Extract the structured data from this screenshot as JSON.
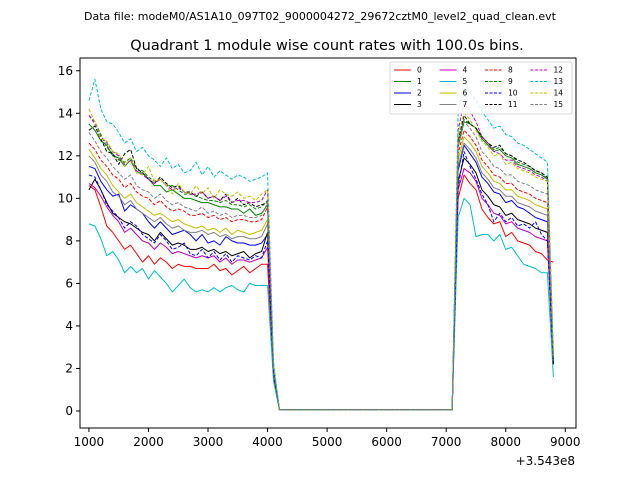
{
  "suptitle": "Data file: modeM0/AS1A10_097T02_9000004272_29672cztM0_level2_quad_clean.evt",
  "chart_data": {
    "type": "line",
    "title": "Quadrant 1 module wise count rates with 100.0s bins.",
    "xlabel": "",
    "ylabel": "",
    "xlim": [
      850,
      9180
    ],
    "ylim": [
      -0.8,
      16.6
    ],
    "x_offset_label": "+3.543e8",
    "x_ticks": [
      1000,
      2000,
      3000,
      4000,
      5000,
      6000,
      7000,
      8000,
      9000
    ],
    "x_tick_labels": [
      "1000",
      "2000",
      "3000",
      "4000",
      "5000",
      "6000",
      "7000",
      "8000",
      "9000"
    ],
    "y_ticks": [
      0,
      2,
      4,
      6,
      8,
      10,
      12,
      14,
      16
    ],
    "y_tick_labels": [
      "0",
      "2",
      "4",
      "6",
      "8",
      "10",
      "12",
      "14",
      "16"
    ],
    "segments": [
      {
        "start": 1000,
        "end": 4100
      },
      {
        "start": 7100,
        "end": 8800
      }
    ],
    "gap": {
      "start": 4200,
      "end": 7100,
      "value": 0.05
    },
    "x": [
      1000,
      1100,
      1200,
      1300,
      1400,
      1500,
      1600,
      1700,
      1800,
      1900,
      2000,
      2100,
      2200,
      2300,
      2400,
      2500,
      2600,
      2700,
      2800,
      2900,
      3000,
      3100,
      3200,
      3300,
      3400,
      3500,
      3600,
      3700,
      3800,
      3900,
      4000,
      4100,
      4200,
      7100,
      7200,
      7300,
      7400,
      7500,
      7600,
      7700,
      7800,
      7900,
      8000,
      8100,
      8200,
      8300,
      8400,
      8500,
      8600,
      8700,
      8800
    ],
    "series": [
      {
        "name": "0",
        "color": "#ff0000",
        "style": "solid",
        "values": [
          10.6,
          10.4,
          9.6,
          8.7,
          8.4,
          8.0,
          7.6,
          7.8,
          7.4,
          7.0,
          7.3,
          6.9,
          7.2,
          7.0,
          6.7,
          6.9,
          6.8,
          6.8,
          6.7,
          6.7,
          6.7,
          6.9,
          6.6,
          6.7,
          6.4,
          6.6,
          6.8,
          6.5,
          6.7,
          6.9,
          6.9,
          1.6,
          0.05,
          0.05,
          10.0,
          11.1,
          10.7,
          10.4,
          9.5,
          9.1,
          8.8,
          8.9,
          8.2,
          8.4,
          8.0,
          7.9,
          7.8,
          7.5,
          7.4,
          7.1,
          7.0
        ]
      },
      {
        "name": "1",
        "color": "#008000",
        "style": "solid",
        "values": [
          13.5,
          13.2,
          12.7,
          12.5,
          12.0,
          11.9,
          11.5,
          11.8,
          11.2,
          11.2,
          10.9,
          10.6,
          10.6,
          10.3,
          10.4,
          10.2,
          10.0,
          10.0,
          9.9,
          9.8,
          9.8,
          9.7,
          9.6,
          9.6,
          9.5,
          9.5,
          9.3,
          9.5,
          9.2,
          9.3,
          9.7,
          2.0,
          0.05,
          0.05,
          12.4,
          13.6,
          13.5,
          13.3,
          12.8,
          12.5,
          12.2,
          12.3,
          12.0,
          11.9,
          11.6,
          11.5,
          11.4,
          11.2,
          11.1,
          10.9,
          2.2
        ]
      },
      {
        "name": "2",
        "color": "#0000ff",
        "style": "solid",
        "values": [
          11.5,
          11.4,
          10.8,
          10.4,
          10.1,
          10.2,
          9.4,
          9.7,
          9.5,
          9.3,
          8.9,
          8.6,
          8.9,
          8.6,
          8.3,
          8.4,
          8.5,
          8.3,
          8.0,
          8.3,
          7.9,
          8.0,
          7.8,
          8.2,
          8.0,
          7.9,
          7.9,
          7.8,
          7.8,
          7.9,
          8.3,
          1.9,
          0.05,
          0.05,
          11.3,
          12.5,
          12.1,
          11.7,
          11.0,
          10.7,
          10.3,
          10.2,
          9.8,
          9.9,
          9.6,
          9.5,
          9.3,
          9.1,
          9.0,
          8.9,
          2.4
        ]
      },
      {
        "name": "3",
        "color": "#000000",
        "style": "solid",
        "values": [
          10.4,
          10.9,
          10.4,
          9.8,
          9.3,
          9.1,
          8.9,
          8.8,
          8.6,
          8.4,
          8.3,
          8.0,
          8.4,
          8.1,
          7.8,
          7.9,
          7.8,
          7.6,
          7.6,
          7.7,
          7.5,
          7.6,
          7.4,
          7.5,
          7.3,
          7.4,
          7.5,
          7.2,
          7.4,
          7.5,
          8.4,
          1.9,
          0.05,
          0.05,
          10.8,
          11.9,
          11.6,
          11.2,
          10.4,
          10.1,
          9.7,
          9.6,
          9.2,
          9.3,
          9.0,
          8.9,
          8.8,
          8.6,
          8.5,
          8.4,
          2.4
        ]
      },
      {
        "name": "4",
        "color": "#bf00bf",
        "style": "solid",
        "values": [
          10.7,
          10.5,
          10.1,
          9.6,
          9.2,
          8.9,
          8.4,
          8.6,
          8.3,
          8.0,
          7.9,
          7.6,
          7.9,
          7.7,
          7.4,
          7.5,
          7.4,
          7.3,
          7.2,
          7.3,
          7.2,
          7.3,
          7.0,
          7.2,
          6.9,
          7.1,
          7.1,
          7.0,
          7.1,
          7.2,
          7.7,
          1.8,
          0.05,
          0.05,
          10.4,
          11.4,
          11.2,
          10.8,
          10.0,
          9.7,
          9.3,
          9.2,
          8.8,
          8.9,
          8.6,
          8.5,
          8.4,
          8.2,
          8.1,
          8.0,
          2.3
        ]
      },
      {
        "name": "5",
        "color": "#00bfbf",
        "style": "solid",
        "values": [
          8.8,
          8.7,
          8.1,
          7.3,
          7.5,
          7.1,
          6.5,
          6.8,
          6.5,
          6.7,
          6.2,
          6.6,
          6.3,
          6.0,
          5.6,
          5.9,
          6.2,
          5.8,
          5.6,
          5.7,
          5.6,
          5.8,
          5.6,
          5.8,
          5.9,
          5.7,
          5.6,
          6.0,
          5.9,
          5.9,
          5.9,
          1.4,
          0.05,
          0.05,
          9.1,
          10.0,
          9.7,
          8.2,
          8.3,
          8.3,
          8.0,
          8.3,
          7.6,
          7.7,
          7.3,
          6.9,
          6.8,
          6.7,
          6.5,
          6.5,
          1.6
        ]
      },
      {
        "name": "6",
        "color": "#bfbf00",
        "style": "solid",
        "values": [
          12.3,
          11.9,
          11.4,
          11.1,
          10.6,
          10.3,
          10.0,
          10.2,
          9.8,
          9.6,
          9.4,
          9.2,
          9.3,
          9.1,
          8.9,
          9.0,
          8.8,
          8.7,
          8.6,
          8.7,
          8.5,
          8.6,
          8.4,
          8.6,
          8.3,
          8.5,
          8.4,
          8.3,
          8.4,
          8.5,
          9.0,
          1.9,
          0.05,
          0.05,
          11.8,
          12.9,
          12.6,
          12.2,
          11.5,
          11.2,
          10.8,
          10.7,
          10.4,
          10.4,
          10.1,
          10.0,
          9.9,
          9.7,
          9.6,
          9.5,
          2.5
        ]
      },
      {
        "name": "7",
        "color": "#808080",
        "style": "solid",
        "values": [
          12.0,
          11.7,
          11.1,
          10.8,
          10.3,
          10.1,
          9.7,
          9.9,
          9.5,
          9.3,
          9.1,
          8.9,
          9.1,
          8.8,
          8.6,
          8.7,
          8.5,
          8.4,
          8.4,
          8.5,
          8.3,
          8.4,
          8.2,
          8.3,
          8.1,
          8.2,
          8.2,
          8.1,
          8.1,
          8.2,
          8.8,
          1.9,
          0.05,
          0.05,
          11.5,
          12.6,
          12.3,
          11.9,
          11.2,
          10.9,
          10.5,
          10.4,
          10.1,
          10.1,
          9.8,
          9.7,
          9.6,
          9.4,
          9.3,
          9.2,
          2.4
        ]
      },
      {
        "name": "8",
        "color": "#ff0000",
        "style": "dashed",
        "values": [
          12.6,
          12.3,
          11.8,
          11.5,
          11.1,
          10.9,
          10.5,
          10.7,
          10.3,
          10.1,
          10.0,
          9.7,
          9.9,
          9.6,
          9.4,
          9.5,
          9.4,
          9.2,
          9.2,
          9.3,
          9.1,
          9.2,
          9.0,
          9.1,
          8.9,
          9.0,
          9.0,
          8.9,
          8.9,
          9.0,
          9.6,
          2.0,
          0.05,
          0.05,
          12.1,
          13.2,
          12.9,
          12.5,
          11.8,
          11.5,
          11.1,
          11.0,
          10.7,
          10.7,
          10.4,
          10.3,
          10.2,
          10.0,
          9.9,
          9.8,
          2.5
        ]
      },
      {
        "name": "9",
        "color": "#008000",
        "style": "dashed",
        "values": [
          13.9,
          13.6,
          13.0,
          12.4,
          12.1,
          11.8,
          11.7,
          11.9,
          11.4,
          11.3,
          11.0,
          10.8,
          10.9,
          10.6,
          10.6,
          10.4,
          10.2,
          10.2,
          10.1,
          10.0,
          9.9,
          9.9,
          9.8,
          9.9,
          9.7,
          9.7,
          9.6,
          9.7,
          9.5,
          9.6,
          9.9,
          2.0,
          0.05,
          0.05,
          12.6,
          13.7,
          13.5,
          13.3,
          12.9,
          12.6,
          12.3,
          12.4,
          12.1,
          12.0,
          11.7,
          11.6,
          11.5,
          11.3,
          11.2,
          10.9,
          2.3
        ]
      },
      {
        "name": "10",
        "color": "#0000ff",
        "style": "dashed",
        "values": [
          11.1,
          11.0,
          10.4,
          9.7,
          9.4,
          9.1,
          8.6,
          8.9,
          8.7,
          8.3,
          8.1,
          7.9,
          8.3,
          8.0,
          7.6,
          7.7,
          7.9,
          7.4,
          7.3,
          7.6,
          7.2,
          7.5,
          7.1,
          7.4,
          7.0,
          7.3,
          7.2,
          7.1,
          7.3,
          7.2,
          8.0,
          1.8,
          0.05,
          0.05,
          10.5,
          12.2,
          11.5,
          10.9,
          10.2,
          9.7,
          8.9,
          9.3,
          8.9,
          9.1,
          8.7,
          8.8,
          8.6,
          8.9,
          8.3,
          8.0,
          2.2
        ]
      },
      {
        "name": "11",
        "color": "#000000",
        "style": "dashed",
        "values": [
          13.2,
          13.4,
          12.8,
          12.2,
          12.1,
          11.6,
          12.1,
          12.3,
          11.4,
          11.2,
          10.9,
          10.7,
          11.0,
          10.7,
          10.5,
          10.6,
          10.3,
          10.3,
          10.1,
          10.3,
          10.0,
          10.1,
          9.9,
          10.2,
          9.8,
          10.0,
          9.7,
          9.8,
          9.6,
          9.7,
          9.8,
          2.0,
          0.05,
          0.05,
          12.7,
          13.9,
          13.5,
          13.3,
          12.9,
          12.6,
          12.4,
          12.5,
          12.1,
          12.0,
          11.8,
          11.7,
          11.5,
          11.3,
          11.2,
          11.0,
          2.2
        ]
      },
      {
        "name": "12",
        "color": "#bf00bf",
        "style": "dashed",
        "values": [
          13.9,
          13.5,
          12.9,
          12.6,
          12.2,
          12.0,
          11.6,
          11.8,
          11.3,
          11.1,
          10.9,
          10.7,
          10.9,
          10.6,
          10.4,
          10.5,
          10.3,
          10.2,
          10.2,
          10.3,
          10.0,
          10.1,
          9.9,
          10.1,
          9.8,
          9.9,
          9.9,
          9.8,
          9.8,
          9.9,
          10.4,
          2.1,
          0.05,
          0.05,
          13.2,
          14.5,
          14.1,
          13.6,
          12.9,
          12.6,
          12.2,
          12.1,
          11.8,
          11.8,
          11.5,
          11.4,
          11.3,
          11.1,
          11.0,
          10.8,
          2.6
        ]
      },
      {
        "name": "13",
        "color": "#00bfbf",
        "style": "dashed",
        "values": [
          14.6,
          15.6,
          14.2,
          13.6,
          13.5,
          13.1,
          12.6,
          12.8,
          12.2,
          12.4,
          12.0,
          11.8,
          11.5,
          11.9,
          11.4,
          11.6,
          11.2,
          11.3,
          11.7,
          11.1,
          11.5,
          11.0,
          11.3,
          11.1,
          10.9,
          11.1,
          11.0,
          10.8,
          10.9,
          11.0,
          11.2,
          2.3,
          0.05,
          0.05,
          14.0,
          15.5,
          15.0,
          14.6,
          14.1,
          13.7,
          13.3,
          13.4,
          13.0,
          12.9,
          12.6,
          12.5,
          12.3,
          12.1,
          11.9,
          11.7,
          2.8
        ]
      },
      {
        "name": "14",
        "color": "#bfbf00",
        "style": "dashed",
        "values": [
          14.2,
          13.6,
          12.8,
          12.7,
          12.2,
          12.1,
          11.5,
          11.9,
          11.2,
          11.1,
          11.5,
          10.8,
          10.9,
          10.6,
          10.2,
          10.7,
          10.3,
          10.2,
          10.6,
          10.2,
          10.5,
          10.0,
          10.4,
          10.2,
          10.1,
          10.3,
          10.0,
          10.1,
          9.9,
          10.2,
          10.4,
          2.2,
          0.05,
          0.05,
          13.0,
          14.0,
          13.7,
          13.2,
          12.7,
          12.4,
          12.0,
          12.1,
          11.6,
          11.7,
          11.4,
          11.3,
          11.2,
          11.0,
          10.9,
          10.8,
          2.6
        ]
      },
      {
        "name": "15",
        "color": "#808080",
        "style": "dashed",
        "values": [
          13.1,
          12.7,
          12.2,
          11.9,
          11.5,
          11.2,
          10.9,
          11.1,
          10.6,
          10.4,
          10.3,
          10.0,
          10.2,
          9.9,
          9.7,
          9.8,
          9.6,
          9.5,
          9.4,
          9.6,
          9.3,
          9.4,
          9.2,
          9.3,
          9.1,
          9.2,
          9.2,
          9.1,
          9.1,
          9.2,
          9.8,
          2.0,
          0.05,
          0.05,
          12.5,
          13.6,
          13.3,
          12.9,
          12.2,
          11.9,
          11.5,
          11.4,
          11.1,
          11.1,
          10.8,
          10.7,
          10.6,
          10.4,
          10.3,
          10.2,
          2.5
        ]
      }
    ],
    "legend": {
      "location": "upper-right",
      "columns": 4,
      "entries": [
        "0",
        "1",
        "2",
        "3",
        "4",
        "5",
        "6",
        "7",
        "8",
        "9",
        "10",
        "11",
        "12",
        "13",
        "14",
        "15"
      ]
    }
  }
}
